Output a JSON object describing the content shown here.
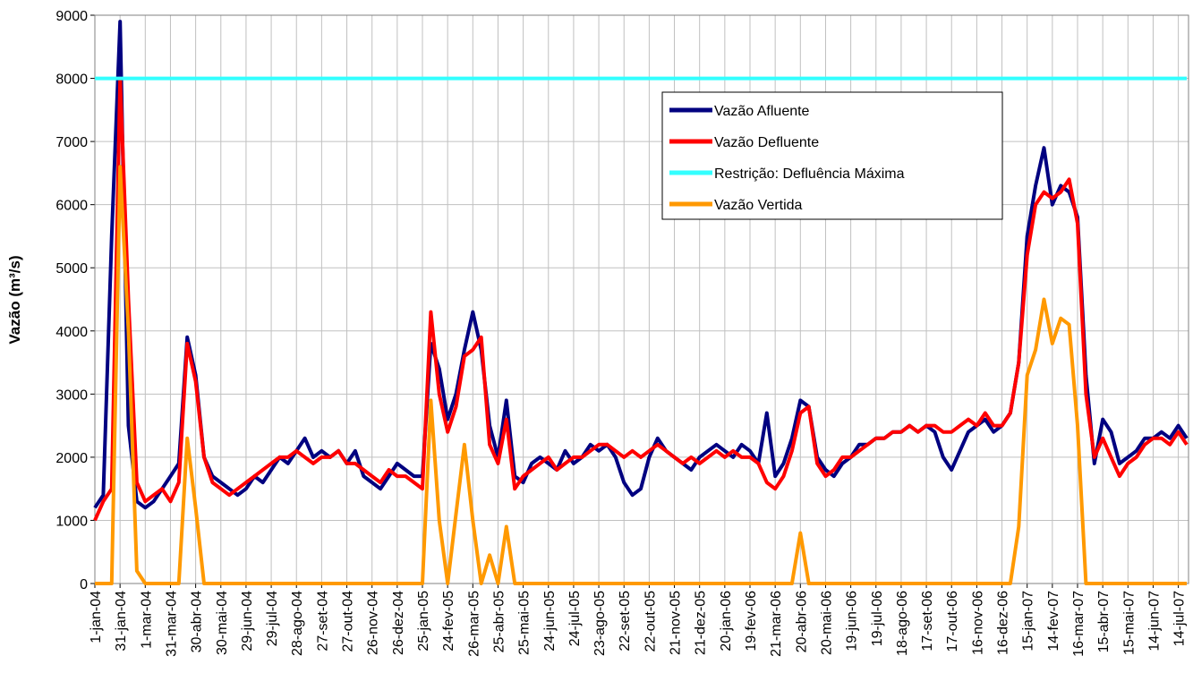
{
  "chart_data": {
    "type": "line",
    "y_label": "Vazão (m³/s)",
    "categories": [
      "1-jan-04",
      null,
      null,
      "31-jan-04",
      null,
      null,
      "1-mar-04",
      null,
      null,
      "31-mar-04",
      null,
      null,
      "30-abr-04",
      null,
      null,
      "30-mai-04",
      null,
      null,
      "29-jun-04",
      null,
      null,
      "29-jul-04",
      null,
      null,
      "28-ago-04",
      null,
      null,
      "27-set-04",
      null,
      null,
      "27-out-04",
      null,
      null,
      "26-nov-04",
      null,
      null,
      "26-dez-04",
      null,
      null,
      "25-jan-05",
      null,
      null,
      "24-fev-05",
      null,
      null,
      "26-mar-05",
      null,
      null,
      "25-abr-05",
      null,
      null,
      "25-mai-05",
      null,
      null,
      "24-jun-05",
      null,
      null,
      "24-jul-05",
      null,
      null,
      "23-ago-05",
      null,
      null,
      "22-set-05",
      null,
      null,
      "22-out-05",
      null,
      null,
      "21-nov-05",
      null,
      null,
      "21-dez-05",
      null,
      null,
      "20-jan-06",
      null,
      null,
      "19-fev-06",
      null,
      null,
      "21-mar-06",
      null,
      null,
      "20-abr-06",
      null,
      null,
      "20-mai-06",
      null,
      null,
      "19-jun-06",
      null,
      null,
      "19-jul-06",
      null,
      null,
      "18-ago-06",
      null,
      null,
      "17-set-06",
      null,
      null,
      "17-out-06",
      null,
      null,
      "16-nov-06",
      null,
      null,
      "16-dez-06",
      null,
      null,
      "15-jan-07",
      null,
      null,
      "14-fev-07",
      null,
      null,
      "16-mar-07",
      null,
      null,
      "15-abr-07",
      null,
      null,
      "15-mai-07",
      null,
      null,
      "14-jun-07",
      null,
      null,
      "14-jul-07",
      null
    ],
    "series": [
      {
        "name": "Vazão Afluente",
        "color": "#000080",
        "values": [
          1200,
          1400,
          5500,
          8900,
          2500,
          1300,
          1200,
          1300,
          1500,
          1700,
          1900,
          3900,
          3300,
          2000,
          1700,
          1600,
          1500,
          1400,
          1500,
          1700,
          1600,
          1800,
          2000,
          1900,
          2100,
          2300,
          2000,
          2100,
          2000,
          2100,
          1900,
          2100,
          1700,
          1600,
          1500,
          1700,
          1900,
          1800,
          1700,
          1700,
          3800,
          3400,
          2600,
          3000,
          3700,
          4300,
          3700,
          2500,
          2000,
          2900,
          1700,
          1600,
          1900,
          2000,
          1900,
          1800,
          2100,
          1900,
          2000,
          2200,
          2100,
          2200,
          2000,
          1600,
          1400,
          1500,
          2000,
          2300,
          2100,
          2000,
          1900,
          1800,
          2000,
          2100,
          2200,
          2100,
          2000,
          2200,
          2100,
          1900,
          2700,
          1700,
          1900,
          2300,
          2900,
          2800,
          2000,
          1800,
          1700,
          1900,
          2000,
          2200,
          2200,
          2300,
          2300,
          2400,
          2400,
          2500,
          2400,
          2500,
          2400,
          2000,
          1800,
          2100,
          2400,
          2500,
          2600,
          2400,
          2500,
          2700,
          3500,
          5500,
          6300,
          6900,
          6000,
          6300,
          6200,
          5800,
          3300,
          1900,
          2600,
          2400,
          1900,
          2000,
          2100,
          2300,
          2300,
          2400,
          2300,
          2500,
          2300
        ]
      },
      {
        "name": "Vazão Defluente",
        "color": "#ff0000",
        "values": [
          1000,
          1300,
          1500,
          8000,
          4500,
          1600,
          1300,
          1400,
          1500,
          1300,
          1600,
          3800,
          3200,
          2000,
          1600,
          1500,
          1400,
          1500,
          1600,
          1700,
          1800,
          1900,
          2000,
          2000,
          2100,
          2000,
          1900,
          2000,
          2000,
          2100,
          1900,
          1900,
          1800,
          1700,
          1600,
          1800,
          1700,
          1700,
          1600,
          1500,
          4300,
          3000,
          2400,
          2800,
          3600,
          3700,
          3900,
          2200,
          1900,
          2600,
          1500,
          1700,
          1800,
          1900,
          2000,
          1800,
          1900,
          2000,
          2000,
          2100,
          2200,
          2200,
          2100,
          2000,
          2100,
          2000,
          2100,
          2200,
          2100,
          2000,
          1900,
          2000,
          1900,
          2000,
          2100,
          2000,
          2100,
          2000,
          2000,
          1900,
          1600,
          1500,
          1700,
          2100,
          2700,
          2800,
          1900,
          1700,
          1800,
          2000,
          2000,
          2100,
          2200,
          2300,
          2300,
          2400,
          2400,
          2500,
          2400,
          2500,
          2500,
          2400,
          2400,
          2500,
          2600,
          2500,
          2700,
          2500,
          2500,
          2700,
          3500,
          5200,
          6000,
          6200,
          6100,
          6200,
          6400,
          5700,
          3000,
          2000,
          2300,
          2000,
          1700,
          1900,
          2000,
          2200,
          2300,
          2300,
          2200,
          2400,
          2200
        ]
      },
      {
        "name": "Restrição: Defluência Máxima",
        "color": "#33ffff",
        "values": [
          8000,
          8000,
          8000,
          8000,
          8000,
          8000,
          8000,
          8000,
          8000,
          8000,
          8000,
          8000,
          8000,
          8000,
          8000,
          8000,
          8000,
          8000,
          8000,
          8000,
          8000,
          8000,
          8000,
          8000,
          8000,
          8000,
          8000,
          8000,
          8000,
          8000,
          8000,
          8000,
          8000,
          8000,
          8000,
          8000,
          8000,
          8000,
          8000,
          8000,
          8000,
          8000,
          8000,
          8000,
          8000,
          8000,
          8000,
          8000,
          8000,
          8000,
          8000,
          8000,
          8000,
          8000,
          8000,
          8000,
          8000,
          8000,
          8000,
          8000,
          8000,
          8000,
          8000,
          8000,
          8000,
          8000,
          8000,
          8000,
          8000,
          8000,
          8000,
          8000,
          8000,
          8000,
          8000,
          8000,
          8000,
          8000,
          8000,
          8000,
          8000,
          8000,
          8000,
          8000,
          8000,
          8000,
          8000,
          8000,
          8000,
          8000,
          8000,
          8000,
          8000,
          8000,
          8000,
          8000,
          8000,
          8000,
          8000,
          8000,
          8000,
          8000,
          8000,
          8000,
          8000,
          8000,
          8000,
          8000,
          8000,
          8000,
          8000,
          8000,
          8000,
          8000,
          8000,
          8000,
          8000,
          8000,
          8000,
          8000,
          8000,
          8000,
          8000,
          8000,
          8000,
          8000,
          8000,
          8000,
          8000,
          8000,
          8000
        ]
      },
      {
        "name": "Vazão Vertida",
        "color": "#ff9900",
        "values": [
          0,
          0,
          0,
          6600,
          4000,
          200,
          0,
          0,
          0,
          0,
          0,
          2300,
          1200,
          0,
          0,
          0,
          0,
          0,
          0,
          0,
          0,
          0,
          0,
          0,
          0,
          0,
          0,
          0,
          0,
          0,
          0,
          0,
          0,
          0,
          0,
          0,
          0,
          0,
          0,
          0,
          2900,
          1000,
          0,
          1100,
          2200,
          1000,
          0,
          450,
          0,
          900,
          0,
          0,
          0,
          0,
          0,
          0,
          0,
          0,
          0,
          0,
          0,
          0,
          0,
          0,
          0,
          0,
          0,
          0,
          0,
          0,
          0,
          0,
          0,
          0,
          0,
          0,
          0,
          0,
          0,
          0,
          0,
          0,
          0,
          0,
          800,
          0,
          0,
          0,
          0,
          0,
          0,
          0,
          0,
          0,
          0,
          0,
          0,
          0,
          0,
          0,
          0,
          0,
          0,
          0,
          0,
          0,
          0,
          0,
          0,
          0,
          900,
          3300,
          3700,
          4500,
          3800,
          4200,
          4100,
          2500,
          0,
          0,
          0,
          0,
          0,
          0,
          0,
          0,
          0,
          0,
          0,
          0,
          0
        ]
      }
    ],
    "ylim": [
      0,
      9000
    ],
    "yticks": [
      0,
      1000,
      2000,
      3000,
      4000,
      5000,
      6000,
      7000,
      8000,
      9000
    ],
    "grid": true
  }
}
